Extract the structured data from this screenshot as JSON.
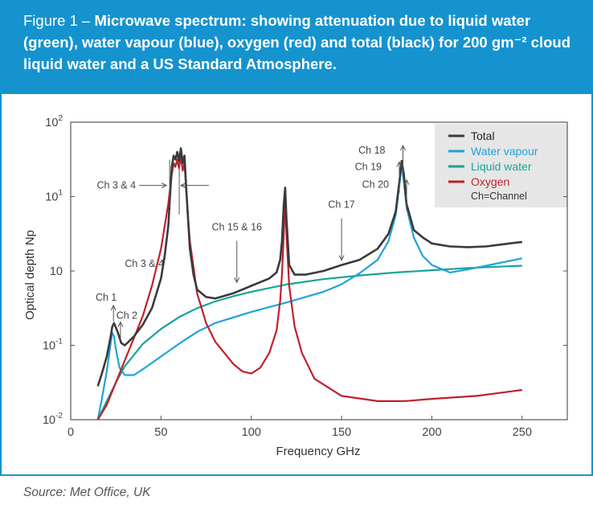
{
  "figure": {
    "label": "Figure 1 – ",
    "title": "Microwave spectrum: showing attenuation due to liquid water (green), water vapour (blue), oxygen (red) and total (black) for 200 gm⁻² cloud liquid water and a US Standard Atmosphere."
  },
  "source": "Source: Met Office, UK",
  "colors": {
    "total": "#3a3a3a",
    "water_vapour": "#1ea3dc",
    "liquid_water": "#1aa397",
    "oxygen": "#c0202c",
    "banner": "#1593cf"
  },
  "chart_data": {
    "type": "line",
    "xlabel": "Frequency GHz",
    "ylabel": "Optical depth Np",
    "xlim": [
      0,
      275
    ],
    "ylim": [
      -2,
      2
    ],
    "yscale": "log",
    "xticks": [
      0,
      50,
      100,
      150,
      200,
      250
    ],
    "yticks": [
      {
        "value": 2,
        "base": "10",
        "sup": "2"
      },
      {
        "value": 1,
        "base": "10",
        "sup": "1"
      },
      {
        "value": 0,
        "base": "10",
        "sup": ""
      },
      {
        "value": -1,
        "base": "10",
        "sup": "-1"
      },
      {
        "value": -2,
        "base": "10",
        "sup": "-2"
      }
    ],
    "series": [
      {
        "name": "Total",
        "color": "#3a3a3a",
        "x": [
          15,
          17,
          20,
          22,
          23,
          24,
          26,
          28,
          30,
          35,
          40,
          45,
          50,
          52,
          54,
          55,
          56,
          57,
          58,
          59,
          60,
          61,
          62,
          63,
          64,
          66,
          68,
          70,
          75,
          80,
          90,
          100,
          110,
          114,
          116,
          117,
          118,
          118.75,
          119.5,
          121,
          124,
          130,
          140,
          150,
          160,
          170,
          176,
          180,
          182,
          183.3,
          184.5,
          186,
          190,
          195,
          200,
          210,
          220,
          230,
          240,
          250
        ],
        "y": [
          -1.55,
          -1.4,
          -1.15,
          -0.9,
          -0.75,
          -0.7,
          -0.82,
          -0.97,
          -1.0,
          -0.88,
          -0.72,
          -0.5,
          -0.1,
          0.2,
          0.6,
          1.0,
          1.4,
          1.55,
          1.5,
          1.6,
          1.48,
          1.65,
          1.45,
          1.55,
          1.1,
          0.3,
          -0.05,
          -0.25,
          -0.35,
          -0.37,
          -0.3,
          -0.2,
          -0.1,
          -0.02,
          0.15,
          0.4,
          0.9,
          1.12,
          0.7,
          0.08,
          -0.05,
          -0.05,
          -0.0,
          0.08,
          0.15,
          0.3,
          0.5,
          0.8,
          1.2,
          1.48,
          1.3,
          0.9,
          0.55,
          0.45,
          0.37,
          0.33,
          0.32,
          0.33,
          0.36,
          0.39
        ]
      },
      {
        "name": "Water vapour",
        "color": "#1ea3dc",
        "x": [
          15,
          17,
          20,
          22,
          23,
          24,
          25,
          27,
          30,
          35,
          40,
          50,
          60,
          70,
          80,
          100,
          120,
          140,
          150,
          160,
          170,
          176,
          180,
          182,
          183.3,
          184.5,
          186,
          190,
          195,
          200,
          210,
          220,
          230,
          240,
          250
        ],
        "y": [
          -2.0,
          -1.75,
          -1.35,
          -1.0,
          -0.83,
          -0.88,
          -1.05,
          -1.3,
          -1.4,
          -1.4,
          -1.32,
          -1.15,
          -0.98,
          -0.82,
          -0.7,
          -0.55,
          -0.42,
          -0.28,
          -0.18,
          -0.03,
          0.15,
          0.4,
          0.75,
          1.15,
          1.42,
          1.2,
          0.85,
          0.45,
          0.2,
          0.08,
          -0.02,
          0.02,
          0.07,
          0.12,
          0.17
        ]
      },
      {
        "name": "Liquid water",
        "color": "#1aa397",
        "x": [
          15,
          20,
          25,
          30,
          40,
          50,
          60,
          70,
          80,
          90,
          100,
          120,
          140,
          160,
          180,
          200,
          220,
          250
        ],
        "y": [
          -2.0,
          -1.75,
          -1.5,
          -1.28,
          -0.98,
          -0.78,
          -0.62,
          -0.5,
          -0.41,
          -0.34,
          -0.28,
          -0.18,
          -0.11,
          -0.06,
          -0.02,
          0.01,
          0.04,
          0.07
        ]
      },
      {
        "name": "Oxygen",
        "color": "#c0202c",
        "x": [
          15,
          20,
          25,
          30,
          35,
          40,
          45,
          50,
          52,
          54,
          55,
          56,
          57,
          58,
          59,
          60,
          61,
          62,
          63,
          64,
          65,
          66,
          68,
          70,
          75,
          80,
          90,
          95,
          100,
          105,
          110,
          114,
          116,
          117,
          118,
          118.75,
          119.5,
          121,
          124,
          128,
          135,
          150,
          170,
          185,
          200,
          225,
          250
        ],
        "y": [
          -2.0,
          -1.8,
          -1.5,
          -1.2,
          -0.9,
          -0.6,
          -0.2,
          0.3,
          0.6,
          0.9,
          1.1,
          1.3,
          1.45,
          1.4,
          1.5,
          1.38,
          1.55,
          1.35,
          1.45,
          1.1,
          0.7,
          0.4,
          0.05,
          -0.3,
          -0.7,
          -0.95,
          -1.25,
          -1.35,
          -1.38,
          -1.3,
          -1.1,
          -0.8,
          -0.4,
          -0.05,
          0.5,
          0.95,
          0.5,
          -0.2,
          -0.75,
          -1.1,
          -1.45,
          -1.68,
          -1.75,
          -1.75,
          -1.72,
          -1.68,
          -1.6
        ]
      }
    ],
    "legend": {
      "position": "top-right",
      "items": [
        {
          "label": "Total",
          "color": "#3a3a3a"
        },
        {
          "label": "Water vapour",
          "color": "#1ea3dc"
        },
        {
          "label": "Liquid water",
          "color": "#1aa397"
        },
        {
          "label": "Oxygen",
          "color": "#c0202c"
        }
      ],
      "note": "Ch=Channel"
    },
    "annotations": [
      {
        "text": "Ch 3 & 4",
        "type": "arrow-pair",
        "x1": 53,
        "x2": 61,
        "y": 1.15
      },
      {
        "text": "Ch 3 & 4",
        "type": "label",
        "x": 30,
        "y": 0.1
      },
      {
        "text": "Ch 1",
        "type": "arrow-up",
        "x": 25,
        "y": -0.42
      },
      {
        "text": "Ch 2",
        "type": "arrow-up",
        "x": 28,
        "y": -0.6
      },
      {
        "text": "Ch 15 & 16",
        "type": "arrow-down",
        "x": 92,
        "y": 0.45
      },
      {
        "text": "Ch 17",
        "type": "arrow-down",
        "x": 150,
        "y": 0.75
      },
      {
        "text": "Ch 18",
        "type": "arrow-up",
        "x": 184,
        "y": 1.62
      },
      {
        "text": "Ch 19",
        "type": "arrow-up",
        "x": 182,
        "y": 1.4
      },
      {
        "text": "Ch 20",
        "type": "arrow-up",
        "x": 186,
        "y": 1.16
      }
    ]
  }
}
